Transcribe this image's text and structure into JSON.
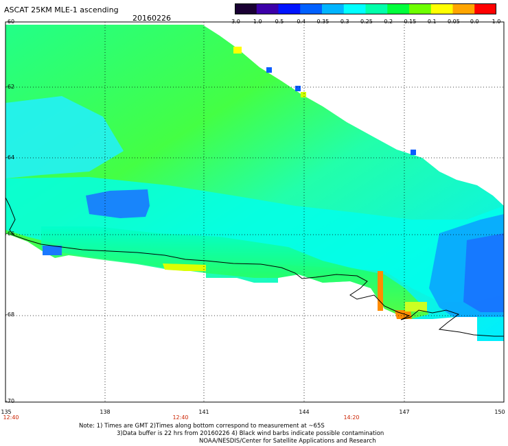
{
  "header": {
    "title": "ASCAT 25KM MLE-1 ascending",
    "date": "20160226"
  },
  "colorbar": {
    "ticks": [
      "-3.0",
      "-1.0",
      "-0.5",
      "-0.4",
      "-0.35",
      "-0.3",
      "-0.25",
      "-0.2",
      "-0.15",
      "-0.1",
      "-0.05",
      "0.0",
      "1.0"
    ],
    "colors": [
      "#1a0033",
      "#3c00a8",
      "#0014ff",
      "#0060ff",
      "#00b4ff",
      "#00ffff",
      "#00ffaa",
      "#00ff3c",
      "#6eff00",
      "#ffff00",
      "#ffa500",
      "#ff0000"
    ]
  },
  "map": {
    "lat_labels": [
      "-60",
      "-62",
      "-64",
      "-66",
      "-68",
      "-70"
    ],
    "lon_labels": [
      "135",
      "138",
      "141",
      "144",
      "147",
      "150"
    ],
    "time_labels": [
      "12:40",
      "12:40",
      "14:20"
    ]
  },
  "footer": {
    "line1": "Note: 1) Times are GMT 2)Times along bottom correspond to measurement at ~65S",
    "line2": "3)Data buffer is 22 hrs from 20160226 4) Black wind barbs indicate possible contamination",
    "line3": "NOAA/NESDIS/Center for Satellite Applications and Research"
  }
}
